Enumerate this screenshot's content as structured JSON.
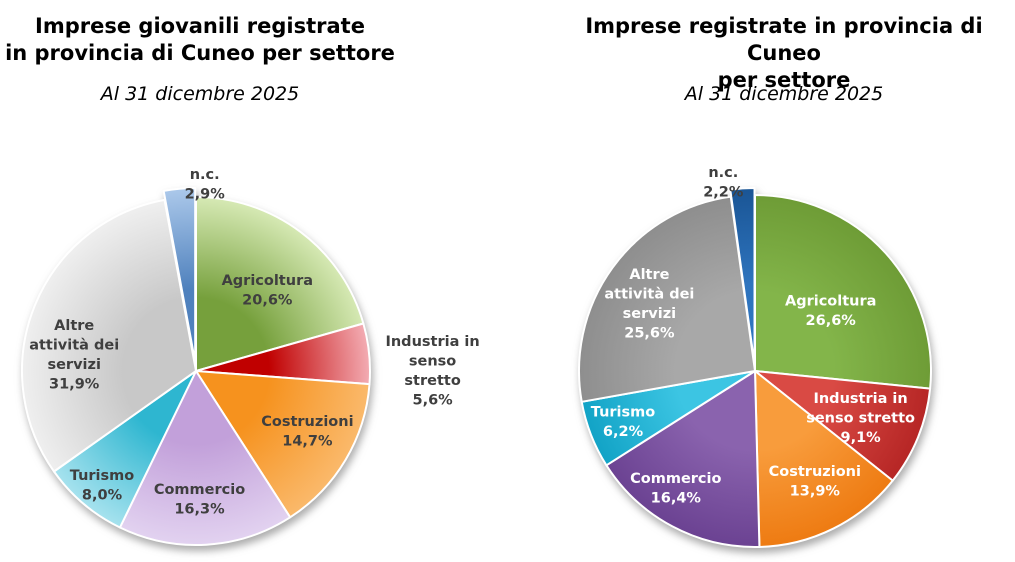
{
  "page": {
    "background": "#FFFFFF",
    "label_dark_color": "#3F3F3F",
    "label_light_color": "#FFFFFF"
  },
  "chart_data": [
    {
      "type": "pie",
      "title_lines": [
        "Imprese giovanili registrate",
        "in provincia di Cuneo per settore"
      ],
      "subtitle": "Al 31 dicembre 2025",
      "unit": "percent",
      "start_angle_deg": 0,
      "direction": "clockwise",
      "legend": "none",
      "categories": [
        "Agricoltura",
        "Industria in senso stretto",
        "Costruzioni",
        "Commercio",
        "Turismo",
        "Altre attività dei servizi",
        "n.c."
      ],
      "values": [
        20.6,
        5.6,
        14.7,
        16.3,
        8.0,
        31.9,
        2.9
      ],
      "value_labels": [
        "20,6%",
        "5,6%",
        "14,7%",
        "16,3%",
        "8,0%",
        "31,9%",
        "2,9%"
      ],
      "slices": [
        {
          "label": "Agricoltura",
          "value": 20.6,
          "pct": "20,6%",
          "lines": [
            "Agricoltura",
            "20,6%"
          ],
          "inner": "#76A03C",
          "outer": "#D6E9B4",
          "text": "#3F3F3F",
          "at": [
            0.41,
            -0.46
          ]
        },
        {
          "label": "Industria in senso stretto",
          "value": 5.6,
          "pct": "5,6%",
          "lines": [
            "Industria in",
            "senso",
            "stretto",
            "5,6%"
          ],
          "inner": "#C00000",
          "outer": "#F3ACB3",
          "text": "#3F3F3F",
          "at": [
            1.36,
            0.0
          ]
        },
        {
          "label": "Costruzioni",
          "value": 14.7,
          "pct": "14,7%",
          "lines": [
            "Costruzioni",
            "14,7%"
          ],
          "inner": "#F6921E",
          "outer": "#FAB96B",
          "text": "#3F3F3F",
          "at": [
            0.64,
            0.35
          ]
        },
        {
          "label": "Commercio",
          "value": 16.3,
          "pct": "16,3%",
          "lines": [
            "Commercio",
            "16,3%"
          ],
          "inner": "#C2A0DA",
          "outer": "#E2D2F0",
          "text": "#3F3F3F",
          "at": [
            0.02,
            0.74
          ]
        },
        {
          "label": "Turismo",
          "value": 8.0,
          "pct": "8,0%",
          "lines": [
            "Turismo",
            "8,0%"
          ],
          "inner": "#2EB6D0",
          "outer": "#A6E2EE",
          "text": "#3F3F3F",
          "at": [
            -0.54,
            0.66
          ]
        },
        {
          "label": "Altre attività dei servizi",
          "value": 31.9,
          "pct": "31,9%",
          "lines": [
            "Altre",
            "attività dei",
            "servizi",
            "31,9%"
          ],
          "inner": "#C8C8C8",
          "outer": "#EFEFEF",
          "text": "#3F3F3F",
          "at": [
            -0.7,
            -0.09
          ]
        },
        {
          "label": "n.c.",
          "value": 2.9,
          "pct": "2,9%",
          "lines": [
            "n.c.",
            "2,9%"
          ],
          "inner": "#4F81BD",
          "outer": "#ABC8EA",
          "text": "#3F3F3F",
          "at": [
            0.05,
            -1.07
          ],
          "explode": 9
        }
      ]
    },
    {
      "type": "pie",
      "title_lines": [
        "Imprese registrate in provincia di Cuneo",
        "per settore"
      ],
      "subtitle": "Al 31 dicembre 2025",
      "unit": "percent",
      "start_angle_deg": 0,
      "direction": "clockwise",
      "legend": "none",
      "categories": [
        "Agricoltura",
        "Industria in senso stretto",
        "Costruzioni",
        "Commercio",
        "Turismo",
        "Altre attività dei servizi",
        "n.c."
      ],
      "values": [
        26.6,
        9.1,
        13.9,
        16.4,
        6.2,
        25.6,
        2.2
      ],
      "value_labels": [
        "26,6%",
        "9,1%",
        "13,9%",
        "16,4%",
        "6,2%",
        "25,6%",
        "2,2%"
      ],
      "slices": [
        {
          "label": "Agricoltura",
          "value": 26.6,
          "pct": "26,6%",
          "lines": [
            "Agricoltura",
            "26,6%"
          ],
          "inner": "#83B54A",
          "outer": "#6E9C36",
          "text": "#FFFFFF",
          "at": [
            0.43,
            -0.34
          ]
        },
        {
          "label": "Industria in senso stretto",
          "value": 9.1,
          "pct": "9,1%",
          "lines": [
            "Industria in",
            "senso stretto",
            "9,1%"
          ],
          "inner": "#D94A44",
          "outer": "#B62625",
          "text": "#FFFFFF",
          "at": [
            0.6,
            0.27
          ]
        },
        {
          "label": "Costruzioni",
          "value": 13.9,
          "pct": "13,9%",
          "lines": [
            "Costruzioni",
            "13,9%"
          ],
          "inner": "#F89C3C",
          "outer": "#EE7B12",
          "text": "#FFFFFF",
          "at": [
            0.34,
            0.63
          ]
        },
        {
          "label": "Commercio",
          "value": 16.4,
          "pct": "16,4%",
          "lines": [
            "Commercio",
            "16,4%"
          ],
          "inner": "#8A63AE",
          "outer": "#6B4292",
          "text": "#FFFFFF",
          "at": [
            -0.45,
            0.67
          ]
        },
        {
          "label": "Turismo",
          "value": 6.2,
          "pct": "6,2%",
          "lines": [
            "Turismo",
            "6,2%"
          ],
          "inner": "#3CC5E3",
          "outer": "#12A3C6",
          "text": "#FFFFFF",
          "at": [
            -0.75,
            0.29
          ]
        },
        {
          "label": "Altre attività dei servizi",
          "value": 25.6,
          "pct": "25,6%",
          "lines": [
            "Altre",
            "attività dei",
            "servizi",
            "25,6%"
          ],
          "inner": "#A8A8A8",
          "outer": "#8E8E8E",
          "text": "#FFFFFF",
          "at": [
            -0.6,
            -0.38
          ]
        },
        {
          "label": "n.c.",
          "value": 2.2,
          "pct": "2,2%",
          "lines": [
            "n.c.",
            "2,2%"
          ],
          "inner": "#2E74BE",
          "outer": "#1A5595",
          "text": "#3F3F3F",
          "at": [
            -0.18,
            -1.07
          ],
          "explode": 7
        }
      ]
    }
  ]
}
